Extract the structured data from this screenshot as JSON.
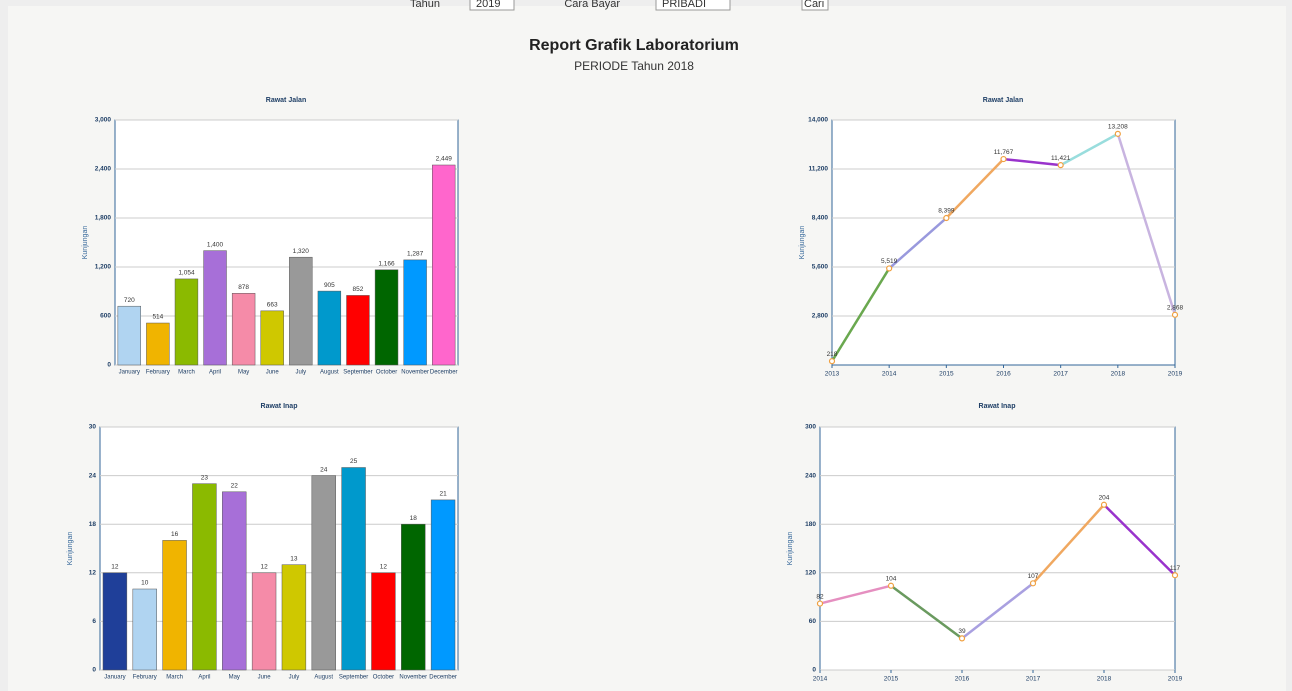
{
  "header": {
    "filters": [
      {
        "label": "Tahun",
        "value": "2019"
      },
      {
        "label": "Cara Bayar",
        "value": "PRIBADI"
      }
    ],
    "button": "Cari",
    "title": "Report Grafik Laboratorium",
    "subtitle": "PERIODE Tahun 2018"
  },
  "chart_data": [
    {
      "type": "bar",
      "title": "Rawat Jalan",
      "ylabel": "Kunjungan",
      "categories": [
        "January",
        "February",
        "March",
        "April",
        "May",
        "June",
        "July",
        "August",
        "September",
        "October",
        "November",
        "December"
      ],
      "values": [
        720,
        514,
        1054,
        1400,
        878,
        663,
        1320,
        905,
        852,
        1166,
        1287,
        2449
      ],
      "value_labels": [
        "720",
        "514",
        "1,054",
        "1,400",
        "878",
        "663",
        "1,320",
        "905",
        "852",
        "1,166",
        "1,287",
        "2,449"
      ],
      "colors": [
        "#b0d4f1",
        "#f0b400",
        "#8bba00",
        "#a76fd8",
        "#f58ba8",
        "#cfc800",
        "#999999",
        "#0099cc",
        "#ff0000",
        "#006600",
        "#0099ff",
        "#ff66cc"
      ],
      "ylim": [
        0,
        3000
      ],
      "yticks": [
        0,
        600,
        {
          "value": 1200,
          "label": "1,200"
        },
        {
          "value": 1800,
          "label": "1,800"
        },
        {
          "value": 2400,
          "label": "2,400"
        },
        {
          "value": 3000,
          "label": "3,000"
        }
      ],
      "grid": true
    },
    {
      "type": "line",
      "title": "Rawat Jalan",
      "ylabel": "Kunjungan",
      "x": [
        2013,
        2014,
        2015,
        2016,
        2017,
        2018,
        2019
      ],
      "values": [
        218,
        5519,
        8399,
        11767,
        11421,
        13208,
        2868
      ],
      "value_labels": [
        "218",
        "5,519",
        "8,399",
        "11,767",
        "11,421",
        "13,208",
        "2,868"
      ],
      "segment_colors": [
        "#6aa84f",
        "#9999dd",
        "#f0a860",
        "#9933cc",
        "#99dddd",
        "#c8b4e0"
      ],
      "marker_color": "#f0a040",
      "xlim": [
        2013,
        2019
      ],
      "xticks": [
        2013,
        2014,
        2015,
        2016,
        2017,
        2018,
        2019
      ],
      "ylim": [
        0,
        14000
      ],
      "yticks": [
        {
          "value": 2800,
          "label": "2,800"
        },
        {
          "value": 5600,
          "label": "5,600"
        },
        {
          "value": 8400,
          "label": "8,400"
        },
        {
          "value": 11200,
          "label": "11,200"
        },
        {
          "value": 14000,
          "label": "14,000"
        }
      ],
      "grid": true
    },
    {
      "type": "bar",
      "title": "Rawat Inap",
      "ylabel": "Kunjungan",
      "categories": [
        "January",
        "February",
        "March",
        "April",
        "May",
        "June",
        "July",
        "August",
        "September",
        "October",
        "November",
        "December"
      ],
      "values": [
        12,
        10,
        16,
        23,
        22,
        12,
        13,
        24,
        25,
        12,
        18,
        21
      ],
      "colors": [
        "#1f3f99",
        "#b0d4f1",
        "#f0b400",
        "#8bba00",
        "#a76fd8",
        "#f58ba8",
        "#cfc800",
        "#999999",
        "#0099cc",
        "#ff0000",
        "#006600",
        "#0099ff"
      ],
      "ylim": [
        0,
        30
      ],
      "yticks": [
        0,
        6,
        12,
        18,
        24,
        30
      ],
      "grid": true
    },
    {
      "type": "line",
      "title": "Rawat Inap",
      "ylabel": "Kunjungan",
      "x": [
        2014,
        2015,
        2016,
        2017,
        2018,
        2019
      ],
      "values": [
        82,
        104,
        39,
        107,
        204,
        117
      ],
      "segment_colors": [
        "#e58fc0",
        "#6a9a5f",
        "#a9a0e0",
        "#f0a860",
        "#9933cc"
      ],
      "marker_color": "#f0a040",
      "xlim": [
        2014,
        2019
      ],
      "xticks": [
        2014,
        2015,
        2016,
        2017,
        2018,
        2019
      ],
      "ylim": [
        0,
        300
      ],
      "yticks": [
        0,
        60,
        120,
        180,
        240,
        300
      ],
      "grid": true
    }
  ]
}
